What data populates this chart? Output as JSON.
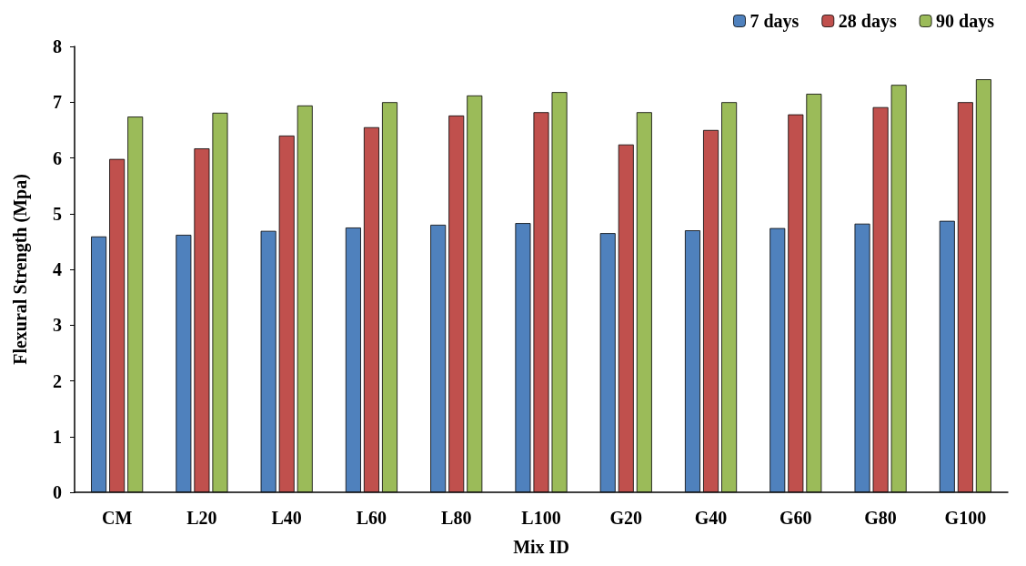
{
  "chart_data": {
    "type": "bar",
    "xlabel": "Mix ID",
    "ylabel": "Flexural Strength (Mpa)",
    "categories": [
      "CM",
      "L20",
      "L40",
      "L60",
      "L80",
      "L100",
      "G20",
      "G40",
      "G60",
      "G80",
      "G100"
    ],
    "series": [
      {
        "name": "7 days",
        "color": "#4f81bd",
        "values": [
          4.59,
          4.62,
          4.69,
          4.75,
          4.8,
          4.83,
          4.65,
          4.7,
          4.74,
          4.82,
          4.87
        ]
      },
      {
        "name": "28 days",
        "color": "#c0504d",
        "values": [
          5.98,
          6.17,
          6.4,
          6.55,
          6.76,
          6.82,
          6.24,
          6.5,
          6.78,
          6.91,
          7.0
        ]
      },
      {
        "name": "90 days",
        "color": "#9bbb59",
        "values": [
          6.74,
          6.81,
          6.94,
          7.0,
          7.12,
          7.18,
          6.82,
          7.0,
          7.15,
          7.31,
          7.41
        ]
      }
    ],
    "ylim": [
      0,
      8
    ],
    "yticks": [
      0,
      1,
      2,
      3,
      4,
      5,
      6,
      7,
      8
    ],
    "grid": false,
    "legend": "top right"
  }
}
